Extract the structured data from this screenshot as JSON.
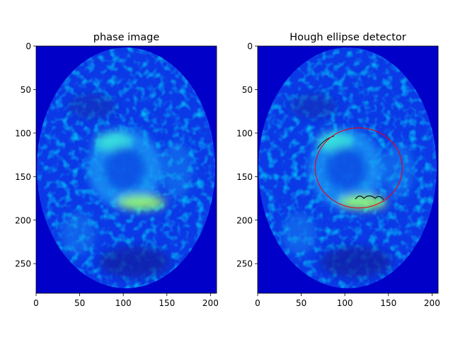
{
  "panels": [
    {
      "title": "phase image",
      "x_ticks": [
        "0",
        "50",
        "100",
        "150",
        "200"
      ],
      "y_ticks": [
        "0",
        "50",
        "100",
        "150",
        "200",
        "250"
      ],
      "x_range": [
        0,
        207
      ],
      "y_range": [
        0,
        284
      ],
      "image": "phase-map-jet-colormap"
    },
    {
      "title": "Hough ellipse detector",
      "x_ticks": [
        "0",
        "50",
        "100",
        "150",
        "200"
      ],
      "y_ticks": [
        "0",
        "50",
        "100",
        "150",
        "200",
        "250"
      ],
      "x_range": [
        0,
        207
      ],
      "y_range": [
        0,
        284
      ],
      "image": "phase-map-jet-colormap",
      "overlay": {
        "shape": "ellipse",
        "color": "#e8001a",
        "center_x": 116,
        "center_y": 140,
        "radius_x": 50,
        "radius_y": 46
      }
    }
  ],
  "colors": {
    "background_dark": "#0000c8",
    "jet_low": "#00007f",
    "jet_mid": "#00ffff",
    "jet_high": "#ffff00"
  }
}
